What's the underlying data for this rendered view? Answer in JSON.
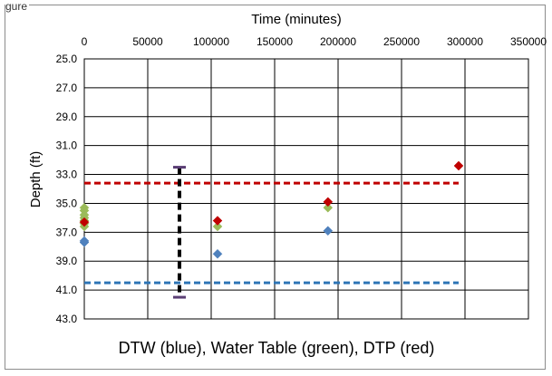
{
  "figure": {
    "label": "gure"
  },
  "chart_data": {
    "type": "scatter",
    "title": "",
    "xlabel": "Time (minutes)",
    "ylabel": "Depth (ft)",
    "caption": "DTW (blue), Water Table (green), DTP (red)",
    "xlim": [
      0,
      350000
    ],
    "ylim": [
      25.0,
      43.0
    ],
    "x_ticks": [
      0,
      50000,
      100000,
      150000,
      200000,
      250000,
      300000,
      350000
    ],
    "y_ticks": [
      "25.0",
      "27.0",
      "29.0",
      "31.0",
      "33.0",
      "35.0",
      "37.0",
      "39.0",
      "41.0",
      "43.0"
    ],
    "y_reversed": true,
    "x_axis_position": "top",
    "grid": true,
    "series": [
      {
        "name": "DTW",
        "color": "#4f81bd",
        "points": [
          [
            0,
            37.6
          ],
          [
            0,
            37.7
          ],
          [
            105000,
            38.5
          ],
          [
            192000,
            36.9
          ]
        ]
      },
      {
        "name": "Water Table",
        "color": "#9bbb59",
        "points": [
          [
            0,
            35.3
          ],
          [
            0,
            35.5
          ],
          [
            0,
            35.8
          ],
          [
            0,
            36.0
          ],
          [
            0,
            36.2
          ],
          [
            0,
            36.4
          ],
          [
            0,
            36.6
          ],
          [
            105000,
            36.6
          ],
          [
            192000,
            35.3
          ],
          [
            295000,
            32.4
          ]
        ]
      },
      {
        "name": "DTP",
        "color": "#c00000",
        "points": [
          [
            0,
            36.3
          ],
          [
            105000,
            36.2
          ],
          [
            192000,
            34.9
          ],
          [
            295000,
            32.4
          ]
        ]
      }
    ],
    "reference_lines": [
      {
        "name": "DTP level",
        "color": "#c00000",
        "y": 33.6,
        "x_range": [
          0,
          295000
        ]
      },
      {
        "name": "DTW level",
        "color": "#2e75b6",
        "y": 40.5,
        "x_range": [
          0,
          295000
        ]
      }
    ],
    "range_bar": {
      "name": "Range",
      "color": "#000000",
      "x": 75000,
      "y_range": [
        32.5,
        41.5
      ]
    }
  }
}
